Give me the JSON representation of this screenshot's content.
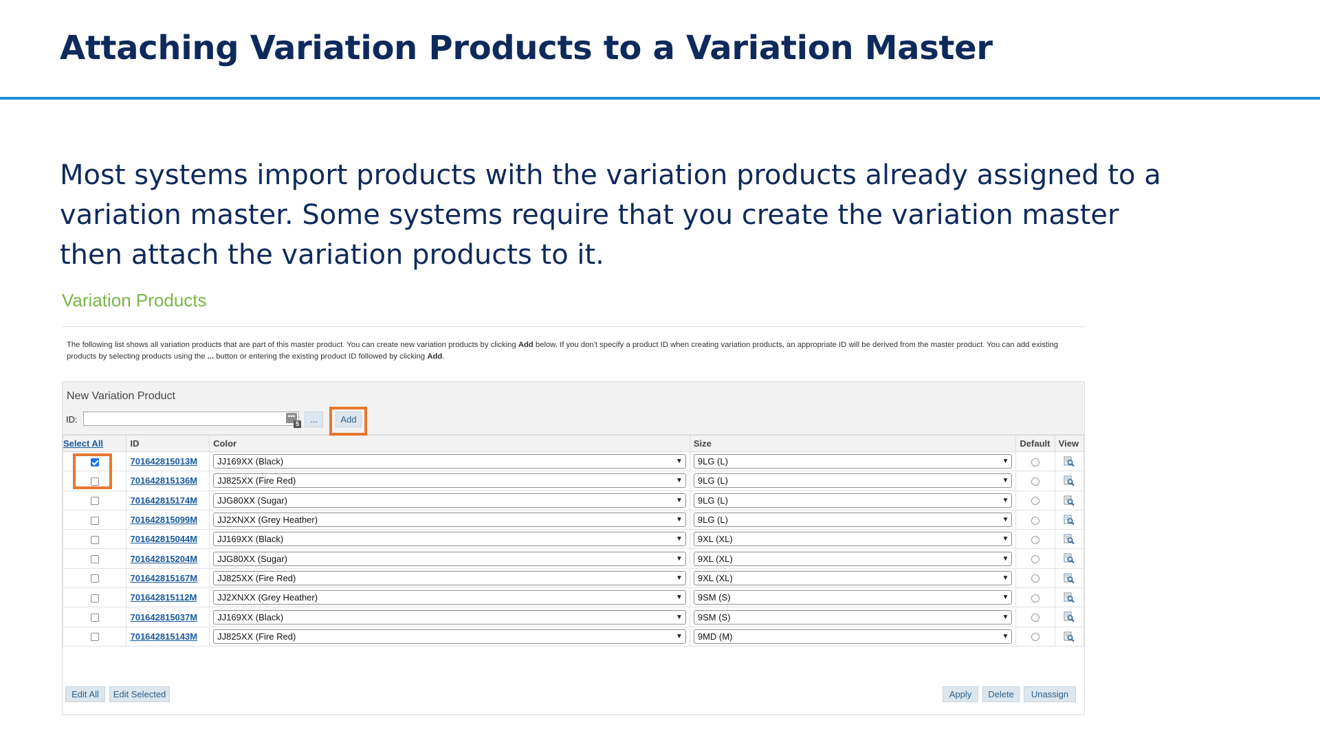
{
  "slide": {
    "title": "Attaching Variation Products to a Variation Master",
    "body": "Most systems import products with the variation products already assigned to a variation master. Some systems require that you create the variation master then attach the variation products to it."
  },
  "section": {
    "heading": "Variation Products",
    "intro_part1": "The following list shows all variation products that are part of this master product. You can create new variation products by clicking ",
    "intro_add1": "Add",
    "intro_part2": " below. If you don't specify a product ID when creating variation products, an appropriate ID will be derived from the master product. You can add existing products by selecting products using the ",
    "intro_ellipsis": "...",
    "intro_part3": " button or entering the existing product ID followed by clicking ",
    "intro_add2": "Add",
    "intro_part4": "."
  },
  "new_variation": {
    "title": "New Variation Product",
    "id_label": "ID:",
    "id_value": "",
    "input_badge": "5",
    "browse_label": "...",
    "add_label": "Add"
  },
  "table": {
    "headers": {
      "select_all": "Select All",
      "id": "ID",
      "color": "Color",
      "size": "Size",
      "default": "Default",
      "view": "View"
    },
    "rows": [
      {
        "checked": true,
        "id": "701642815013M",
        "color": "JJ169XX (Black)",
        "size": "9LG (L)"
      },
      {
        "checked": false,
        "id": "701642815136M",
        "color": "JJ825XX (Fire Red)",
        "size": "9LG (L)"
      },
      {
        "checked": false,
        "id": "701642815174M",
        "color": "JJG80XX (Sugar)",
        "size": "9LG (L)"
      },
      {
        "checked": false,
        "id": "701642815099M",
        "color": "JJ2XNXX (Grey Heather)",
        "size": "9LG (L)"
      },
      {
        "checked": false,
        "id": "701642815044M",
        "color": "JJ169XX (Black)",
        "size": "9XL (XL)"
      },
      {
        "checked": false,
        "id": "701642815204M",
        "color": "JJG80XX (Sugar)",
        "size": "9XL (XL)"
      },
      {
        "checked": false,
        "id": "701642815167M",
        "color": "JJ825XX (Fire Red)",
        "size": "9XL (XL)"
      },
      {
        "checked": false,
        "id": "701642815112M",
        "color": "JJ2XNXX (Grey Heather)",
        "size": "9SM (S)"
      },
      {
        "checked": false,
        "id": "701642815037M",
        "color": "JJ169XX (Black)",
        "size": "9SM (S)"
      },
      {
        "checked": false,
        "id": "701642815143M",
        "color": "JJ825XX (Fire Red)",
        "size": "9MD (M)"
      }
    ]
  },
  "footer": {
    "edit_all": "Edit All",
    "edit_selected": "Edit Selected",
    "apply": "Apply",
    "delete": "Delete",
    "unassign": "Unassign"
  },
  "colors": {
    "title": "#0e2a5c",
    "rule": "#1a93d6",
    "heading": "#7ab648",
    "highlight": "#e8772e",
    "link": "#1a5aa0"
  },
  "icons": {
    "view": "magnifier-document-icon",
    "dropdown": "chevron-down-icon",
    "input_picker": "ellipsis-picker-icon"
  }
}
